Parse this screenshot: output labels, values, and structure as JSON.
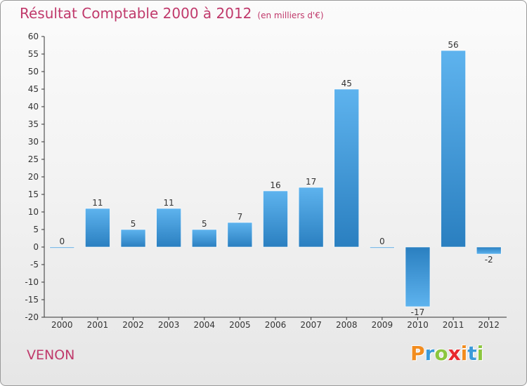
{
  "header": {
    "title": "Résultat Comptable 2000 à 2012",
    "subtitle": "(en milliers d'€)"
  },
  "footer": {
    "commune": "VENON",
    "logo_letters": [
      "P",
      "r",
      "o",
      "x",
      "i",
      "t",
      "i"
    ],
    "logo_colors": [
      "#f28c1e",
      "#3b9ad9",
      "#8cc63f",
      "#e8292e",
      "#f28c1e",
      "#3b9ad9",
      "#8cc63f"
    ]
  },
  "colors": {
    "title": "#c0396b",
    "bar_light": "#5eb3ee",
    "bar_dark": "#2a7fc0",
    "axis": "#333333",
    "grid": "#cfcfcf"
  },
  "chart_data": {
    "type": "bar",
    "categories": [
      "2000",
      "2001",
      "2002",
      "2003",
      "2004",
      "2005",
      "2006",
      "2007",
      "2008",
      "2009",
      "2010",
      "2011",
      "2012"
    ],
    "values": [
      0,
      11,
      5,
      11,
      5,
      7,
      16,
      17,
      45,
      0,
      -17,
      56,
      -2
    ],
    "ylim": [
      -20,
      60
    ],
    "yticks": [
      -20,
      -15,
      -10,
      -5,
      0,
      5,
      10,
      15,
      20,
      25,
      30,
      35,
      40,
      45,
      50,
      55,
      60
    ],
    "grid": false
  }
}
